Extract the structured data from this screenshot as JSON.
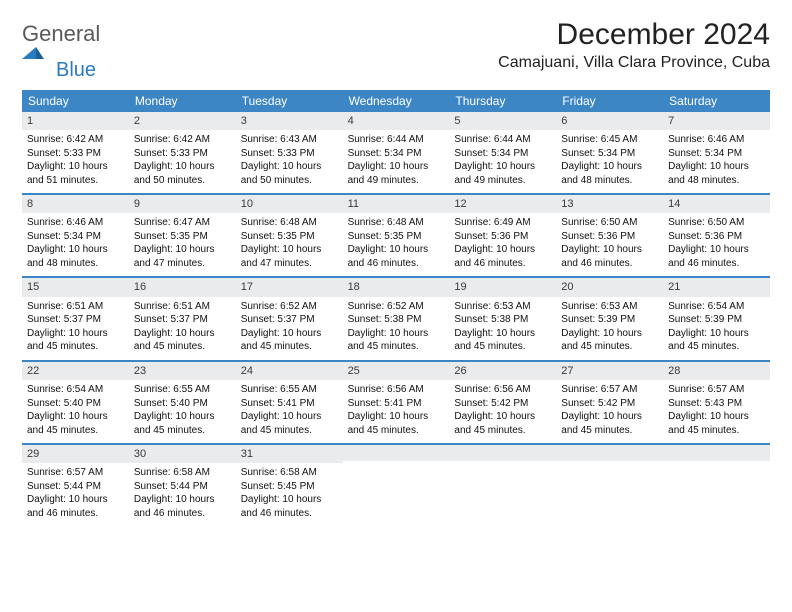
{
  "logo": {
    "word1": "General",
    "word2": "Blue",
    "text_color": "#5a5a5a",
    "accent_color": "#2b7bbf"
  },
  "title": "December 2024",
  "location": "Camajuani, Villa Clara Province, Cuba",
  "header_bg": "#3d86c6",
  "daynum_bg": "#e9ebec",
  "cell_font_size": 10,
  "days_of_week": [
    "Sunday",
    "Monday",
    "Tuesday",
    "Wednesday",
    "Thursday",
    "Friday",
    "Saturday"
  ],
  "days": [
    {
      "n": "1",
      "sunrise": "6:42 AM",
      "sunset": "5:33 PM",
      "daylight": "10 hours and 51 minutes."
    },
    {
      "n": "2",
      "sunrise": "6:42 AM",
      "sunset": "5:33 PM",
      "daylight": "10 hours and 50 minutes."
    },
    {
      "n": "3",
      "sunrise": "6:43 AM",
      "sunset": "5:33 PM",
      "daylight": "10 hours and 50 minutes."
    },
    {
      "n": "4",
      "sunrise": "6:44 AM",
      "sunset": "5:34 PM",
      "daylight": "10 hours and 49 minutes."
    },
    {
      "n": "5",
      "sunrise": "6:44 AM",
      "sunset": "5:34 PM",
      "daylight": "10 hours and 49 minutes."
    },
    {
      "n": "6",
      "sunrise": "6:45 AM",
      "sunset": "5:34 PM",
      "daylight": "10 hours and 48 minutes."
    },
    {
      "n": "7",
      "sunrise": "6:46 AM",
      "sunset": "5:34 PM",
      "daylight": "10 hours and 48 minutes."
    },
    {
      "n": "8",
      "sunrise": "6:46 AM",
      "sunset": "5:34 PM",
      "daylight": "10 hours and 48 minutes."
    },
    {
      "n": "9",
      "sunrise": "6:47 AM",
      "sunset": "5:35 PM",
      "daylight": "10 hours and 47 minutes."
    },
    {
      "n": "10",
      "sunrise": "6:48 AM",
      "sunset": "5:35 PM",
      "daylight": "10 hours and 47 minutes."
    },
    {
      "n": "11",
      "sunrise": "6:48 AM",
      "sunset": "5:35 PM",
      "daylight": "10 hours and 46 minutes."
    },
    {
      "n": "12",
      "sunrise": "6:49 AM",
      "sunset": "5:36 PM",
      "daylight": "10 hours and 46 minutes."
    },
    {
      "n": "13",
      "sunrise": "6:50 AM",
      "sunset": "5:36 PM",
      "daylight": "10 hours and 46 minutes."
    },
    {
      "n": "14",
      "sunrise": "6:50 AM",
      "sunset": "5:36 PM",
      "daylight": "10 hours and 46 minutes."
    },
    {
      "n": "15",
      "sunrise": "6:51 AM",
      "sunset": "5:37 PM",
      "daylight": "10 hours and 45 minutes."
    },
    {
      "n": "16",
      "sunrise": "6:51 AM",
      "sunset": "5:37 PM",
      "daylight": "10 hours and 45 minutes."
    },
    {
      "n": "17",
      "sunrise": "6:52 AM",
      "sunset": "5:37 PM",
      "daylight": "10 hours and 45 minutes."
    },
    {
      "n": "18",
      "sunrise": "6:52 AM",
      "sunset": "5:38 PM",
      "daylight": "10 hours and 45 minutes."
    },
    {
      "n": "19",
      "sunrise": "6:53 AM",
      "sunset": "5:38 PM",
      "daylight": "10 hours and 45 minutes."
    },
    {
      "n": "20",
      "sunrise": "6:53 AM",
      "sunset": "5:39 PM",
      "daylight": "10 hours and 45 minutes."
    },
    {
      "n": "21",
      "sunrise": "6:54 AM",
      "sunset": "5:39 PM",
      "daylight": "10 hours and 45 minutes."
    },
    {
      "n": "22",
      "sunrise": "6:54 AM",
      "sunset": "5:40 PM",
      "daylight": "10 hours and 45 minutes."
    },
    {
      "n": "23",
      "sunrise": "6:55 AM",
      "sunset": "5:40 PM",
      "daylight": "10 hours and 45 minutes."
    },
    {
      "n": "24",
      "sunrise": "6:55 AM",
      "sunset": "5:41 PM",
      "daylight": "10 hours and 45 minutes."
    },
    {
      "n": "25",
      "sunrise": "6:56 AM",
      "sunset": "5:41 PM",
      "daylight": "10 hours and 45 minutes."
    },
    {
      "n": "26",
      "sunrise": "6:56 AM",
      "sunset": "5:42 PM",
      "daylight": "10 hours and 45 minutes."
    },
    {
      "n": "27",
      "sunrise": "6:57 AM",
      "sunset": "5:42 PM",
      "daylight": "10 hours and 45 minutes."
    },
    {
      "n": "28",
      "sunrise": "6:57 AM",
      "sunset": "5:43 PM",
      "daylight": "10 hours and 45 minutes."
    },
    {
      "n": "29",
      "sunrise": "6:57 AM",
      "sunset": "5:44 PM",
      "daylight": "10 hours and 46 minutes."
    },
    {
      "n": "30",
      "sunrise": "6:58 AM",
      "sunset": "5:44 PM",
      "daylight": "10 hours and 46 minutes."
    },
    {
      "n": "31",
      "sunrise": "6:58 AM",
      "sunset": "5:45 PM",
      "daylight": "10 hours and 46 minutes."
    }
  ],
  "labels": {
    "sunrise": "Sunrise: ",
    "sunset": "Sunset: ",
    "daylight": "Daylight: "
  },
  "start_offset": 0,
  "total_cells": 35
}
